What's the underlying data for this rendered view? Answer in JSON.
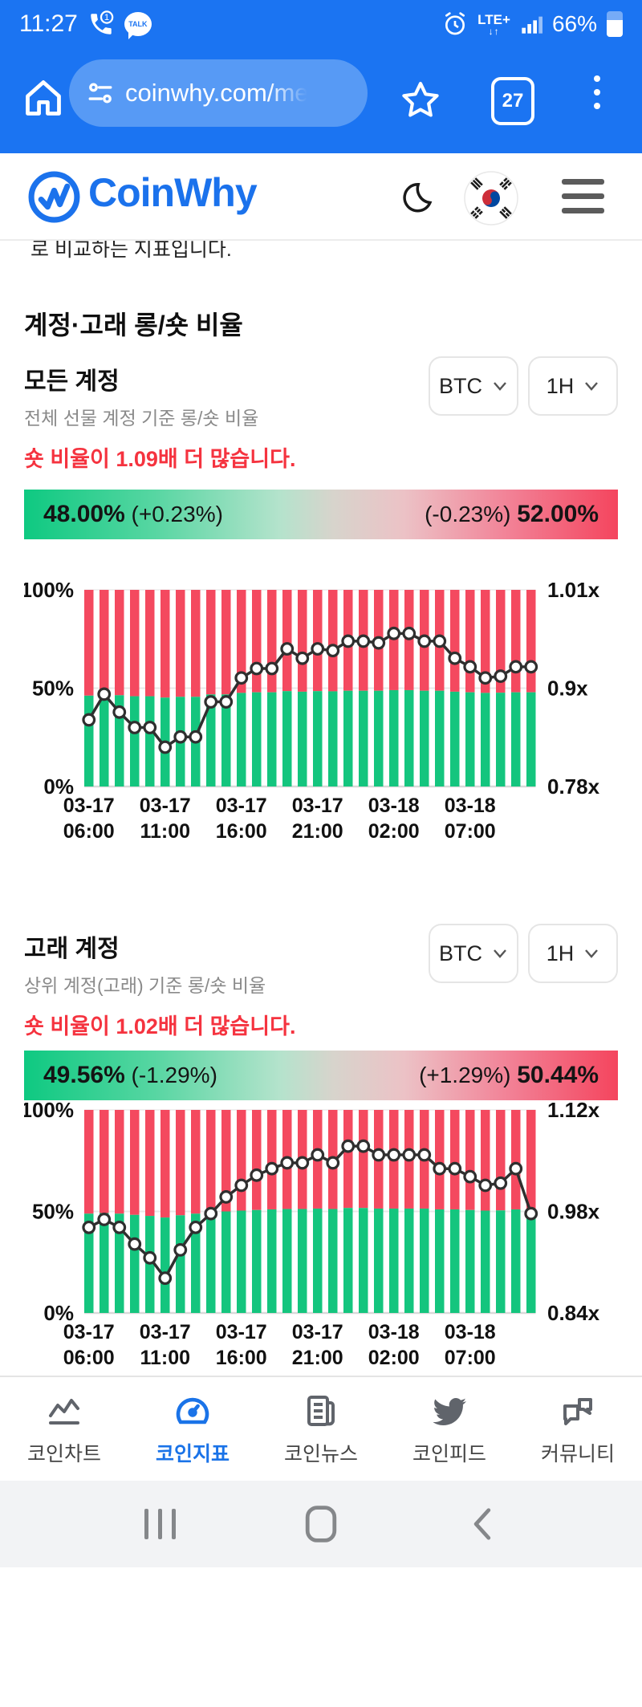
{
  "status_bar": {
    "time": "11:27",
    "battery_pct": "66%",
    "network": "LTE+",
    "icons": [
      "call-notification-icon",
      "kakaotalk-icon",
      "alarm-icon",
      "signal-icon",
      "battery-icon"
    ]
  },
  "browser": {
    "url": "coinwhy.com/me",
    "tab_count": "27",
    "kakao_label": "TALK"
  },
  "header": {
    "brand": "CoinWhy"
  },
  "content": {
    "clipped_line": "로 비교하는 지표입니다.",
    "section_title": "계정·고래 롱/숏 비율",
    "sections": [
      {
        "title": "모든 계정",
        "subtitle": "전체 선물 계정 기준 롱/숏 비율",
        "alert": "숏 비율이 1.09배 더 많습니다.",
        "coin": "BTC",
        "interval": "1H",
        "long_pct": "48.00%",
        "long_change": "(+0.23%)",
        "short_change": "(-0.23%)",
        "short_pct": "52.00%"
      },
      {
        "title": "고래 계정",
        "subtitle": "상위 계정(고래) 기준 롱/숏 비율",
        "alert": "숏 비율이 1.02배 더 많습니다.",
        "coin": "BTC",
        "interval": "1H",
        "long_pct": "49.56%",
        "long_change": "(-1.29%)",
        "short_change": "(+1.29%)",
        "short_pct": "50.44%"
      }
    ]
  },
  "chart_data": [
    {
      "type": "bar",
      "subtype": "stacked-long-short-bars-with-ratio-line",
      "title": "모든 계정 롱/숏 비율",
      "left_axis": {
        "ticks": [
          "100%",
          "50%",
          "0%"
        ],
        "min": 0,
        "max": 100
      },
      "right_axis": {
        "ticks": [
          "1.01x",
          "0.9x",
          "0.78x"
        ],
        "min": 0.78,
        "max": 1.01
      },
      "x_tick_indices": [
        0,
        5,
        10,
        15,
        20,
        25
      ],
      "x_tick_labels": [
        [
          "03-17",
          "06:00"
        ],
        [
          "03-17",
          "11:00"
        ],
        [
          "03-17",
          "16:00"
        ],
        [
          "03-17",
          "21:00"
        ],
        [
          "03-18",
          "02:00"
        ],
        [
          "03-18",
          "07:00"
        ]
      ],
      "bars_long_pct": [
        46.2,
        47.0,
        46.4,
        45.9,
        45.9,
        45.2,
        45.6,
        45.6,
        46.8,
        46.8,
        47.6,
        47.9,
        47.9,
        48.5,
        48.2,
        48.5,
        48.4,
        48.7,
        48.7,
        48.7,
        49.0,
        49.0,
        48.7,
        48.7,
        48.2,
        47.9,
        47.6,
        47.7,
        47.9,
        47.9
      ],
      "bars_short_rule": "short_pct = 100 - long_pct",
      "line_ratio_x": [
        0.858,
        0.888,
        0.867,
        0.849,
        0.849,
        0.826,
        0.838,
        0.838,
        0.879,
        0.879,
        0.907,
        0.918,
        0.918,
        0.941,
        0.93,
        0.941,
        0.939,
        0.95,
        0.95,
        0.948,
        0.959,
        0.959,
        0.95,
        0.95,
        0.93,
        0.92,
        0.907,
        0.909,
        0.92,
        0.92
      ],
      "colors": {
        "long": "#14c57e",
        "short": "#f4495f",
        "line": "#2f2f2f"
      },
      "legend": "off",
      "grid": "horizontal 0/50/100"
    },
    {
      "type": "bar",
      "subtype": "stacked-long-short-bars-with-ratio-line",
      "title": "고래 계정 롱/숏 비율",
      "left_axis": {
        "ticks": [
          "100%",
          "50%",
          "0%"
        ],
        "min": 0,
        "max": 100
      },
      "right_axis": {
        "ticks": [
          "1.12x",
          "0.98x",
          "0.84x"
        ],
        "min": 0.84,
        "max": 1.12
      },
      "x_tick_indices": [
        0,
        5,
        10,
        15,
        20,
        25
      ],
      "x_tick_labels": [
        [
          "03-17",
          "06:00"
        ],
        [
          "03-17",
          "11:00"
        ],
        [
          "03-17",
          "16:00"
        ],
        [
          "03-17",
          "21:00"
        ],
        [
          "03-18",
          "02:00"
        ],
        [
          "03-18",
          "07:00"
        ]
      ],
      "bars_long_pct": [
        48.9,
        49.2,
        48.9,
        48.3,
        47.8,
        47.0,
        48.1,
        48.9,
        49.4,
        50.0,
        50.4,
        50.7,
        51.0,
        51.2,
        51.2,
        51.4,
        51.2,
        51.7,
        51.7,
        51.4,
        51.4,
        51.4,
        51.4,
        51.0,
        51.0,
        50.7,
        50.4,
        50.5,
        51.0,
        49.4
      ],
      "bars_short_rule": "short_pct = 100 - long_pct",
      "line_ratio_x": [
        0.958,
        0.969,
        0.958,
        0.935,
        0.916,
        0.888,
        0.927,
        0.958,
        0.977,
        1.0,
        1.016,
        1.03,
        1.039,
        1.047,
        1.047,
        1.058,
        1.047,
        1.07,
        1.07,
        1.058,
        1.058,
        1.058,
        1.058,
        1.039,
        1.039,
        1.028,
        1.016,
        1.019,
        1.039,
        0.977
      ],
      "colors": {
        "long": "#14c57e",
        "short": "#f4495f",
        "line": "#2f2f2f"
      },
      "legend": "off",
      "grid": "horizontal 0/50/100"
    }
  ],
  "bottom_nav": {
    "active_index": 1,
    "items": [
      {
        "label": "코인차트",
        "icon": "line-chart-icon"
      },
      {
        "label": "코인지표",
        "icon": "gauge-icon"
      },
      {
        "label": "코인뉴스",
        "icon": "news-icon"
      },
      {
        "label": "코인피드",
        "icon": "twitter-bird-icon"
      },
      {
        "label": "커뮤니티",
        "icon": "chat-bubbles-icon"
      }
    ]
  },
  "colors": {
    "accent": "#1a73e8",
    "chrome_blue": "#1b74f2",
    "alert_red": "#f5333f",
    "long_green": "#14c57e",
    "short_red": "#f4495f"
  }
}
